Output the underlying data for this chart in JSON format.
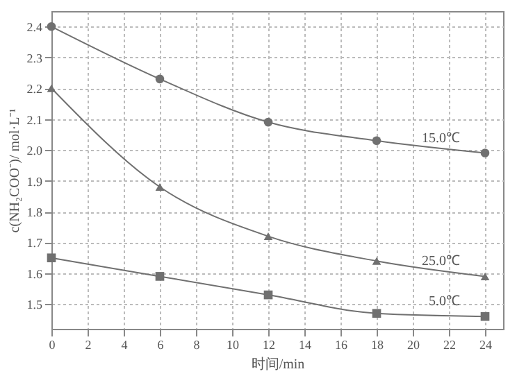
{
  "chart_data": {
    "type": "line",
    "xlabel": "时间/min",
    "ylabel": "c(NH₂COO⁻)/ mol·L⁻¹",
    "x": [
      0,
      6,
      12,
      18,
      24
    ],
    "series": [
      {
        "name": "15.0℃",
        "color": "#707070",
        "marker": "circle",
        "values": [
          2.4,
          2.23,
          2.09,
          2.03,
          1.99
        ]
      },
      {
        "name": "25.0℃",
        "color": "#707070",
        "marker": "triangle",
        "values": [
          2.2,
          1.88,
          1.72,
          1.64,
          1.59
        ]
      },
      {
        "name": "5.0℃",
        "color": "#707070",
        "marker": "square",
        "values": [
          1.65,
          1.59,
          1.53,
          1.47,
          1.46
        ]
      }
    ],
    "xlim": [
      0,
      25
    ],
    "xticks": [
      0,
      2,
      4,
      6,
      8,
      10,
      12,
      14,
      16,
      18,
      20,
      22,
      24
    ],
    "ylim": [
      1.42,
      2.45
    ],
    "yticks": [
      1.5,
      1.6,
      1.7,
      1.8,
      1.9,
      {
        "value": 2,
        "label": "2.0"
      },
      2.1,
      2.2,
      2.3,
      2.4
    ],
    "grid": true
  }
}
